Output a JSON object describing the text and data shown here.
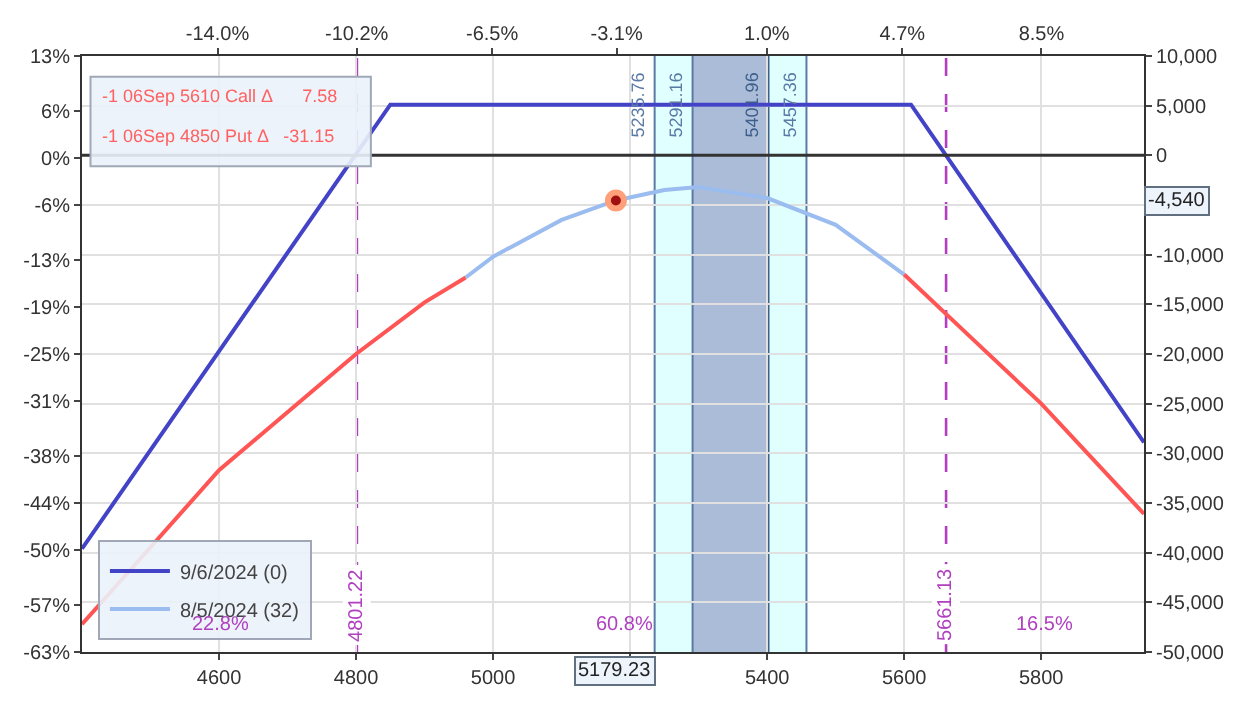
{
  "chart_data": {
    "type": "line",
    "xlim": [
      4400,
      5950
    ],
    "xticks": [
      4600,
      4800,
      5000,
      {
        "value": 5200,
        "label": null
      },
      5400,
      5600,
      5800
    ],
    "x2lim": [
      -17.7,
      11.3
    ],
    "x2ticks": [
      {
        "value": -14.0,
        "label": "-14.0%"
      },
      {
        "value": -10.2,
        "label": "-10.2%"
      },
      {
        "value": -6.5,
        "label": "-6.5%"
      },
      {
        "value": -3.1,
        "label": "-3.1%"
      },
      {
        "value": 1.0,
        "label": "1.0%"
      },
      {
        "value": 4.7,
        "label": "4.7%"
      },
      {
        "value": 8.5,
        "label": "8.5%"
      }
    ],
    "ylim": [
      -63,
      13
    ],
    "yticks": [
      {
        "value": 13,
        "label": "13%"
      },
      {
        "value": 6,
        "label": "6%"
      },
      {
        "value": 0,
        "label": "0%"
      },
      {
        "value": -6,
        "label": "-6%"
      },
      {
        "value": -13,
        "label": "-13%"
      },
      {
        "value": -19,
        "label": "-19%"
      },
      {
        "value": -25,
        "label": "-25%"
      },
      {
        "value": -31,
        "label": "-31%"
      },
      {
        "value": -38,
        "label": "-38%"
      },
      {
        "value": -44,
        "label": "-44%"
      },
      {
        "value": -50,
        "label": "-50%"
      },
      {
        "value": -57,
        "label": "-57%"
      },
      {
        "value": -63,
        "label": "-63%"
      }
    ],
    "y2lim": [
      -50000,
      10000
    ],
    "y2ticks": [
      {
        "value": 10000,
        "label": "10,000"
      },
      {
        "value": 5000,
        "label": "5,000"
      },
      0,
      {
        "value": -5000,
        "label": null
      },
      {
        "value": -10000,
        "label": "-10,000"
      },
      {
        "value": -15000,
        "label": "-15,000"
      },
      {
        "value": -20000,
        "label": "-20,000"
      },
      {
        "value": -25000,
        "label": "-25,000"
      },
      {
        "value": -30000,
        "label": "-30,000"
      },
      {
        "value": -35000,
        "label": "-35,000"
      },
      {
        "value": -40000,
        "label": "-40,000"
      },
      {
        "value": -45000,
        "label": "-45,000"
      },
      {
        "value": -50000,
        "label": "-50,000"
      }
    ],
    "grid": true,
    "legend": "bottom left",
    "marker": "none",
    "line_style": "solid",
    "series": [
      {
        "name": "9/6/2024 (0)",
        "color": "#4343c8",
        "axis": "y2",
        "x": [
          4400,
          4850,
          5610,
          5950
        ],
        "values": [
          -39600,
          5100,
          5100,
          -28900
        ]
      },
      {
        "color": "#ff5555",
        "axis": "y2",
        "x": [
          4400,
          4600,
          4800,
          4900,
          4960
        ],
        "values": [
          -47200,
          -31700,
          -20000,
          -14800,
          -12300
        ]
      },
      {
        "name": "8/5/2024 (32)",
        "color": "#9bbcef",
        "axis": "y2",
        "x": [
          4960,
          5000,
          5100,
          5179.23,
          5250,
          5300,
          5400,
          5500,
          5600
        ],
        "values": [
          -12300,
          -10200,
          -6500,
          -4540,
          -3500,
          -3200,
          -4300,
          -7000,
          -12000
        ]
      },
      {
        "color": "#ff5555",
        "axis": "y2",
        "x": [
          5600,
          5700,
          5800,
          5950
        ],
        "values": [
          -12000,
          -18500,
          -25000,
          -36100
        ]
      },
      {
        "type": "scatter",
        "marker": "circle",
        "color": "#a01010",
        "axis": "y2",
        "x": [
          5179.23
        ],
        "values": [
          -4540
        ]
      }
    ],
    "bands": [
      {
        "axis": "x",
        "from": 5235.76,
        "to": 5457.36,
        "color": "#e0ffff"
      },
      {
        "axis": "x",
        "from": 5291.16,
        "to": 5401.96,
        "color": "#aabcd8"
      }
    ],
    "ref_lines": [
      {
        "axis": "x",
        "value": 4801.22,
        "label": "4801.22",
        "color": "#b040c0",
        "line_style": "dashed"
      },
      {
        "axis": "x",
        "value": 5661.13,
        "label": "5661.13",
        "color": "#b040c0",
        "line_style": "dashed"
      },
      {
        "axis": "x",
        "value": 5235.76,
        "label": "5235.76",
        "color": "#5a7aa6",
        "line_style": "solid"
      },
      {
        "axis": "x",
        "value": 5291.16,
        "label": "5291.16",
        "color": "#5a7aa6",
        "line_style": "solid"
      },
      {
        "axis": "x",
        "value": 5401.96,
        "label": "5401.96",
        "color": "#3e5f8c",
        "line_style": "solid"
      },
      {
        "axis": "x",
        "value": 5457.36,
        "label": "5457.36",
        "color": "#5a7aa6",
        "line_style": "solid"
      },
      {
        "axis": "y2",
        "value": 0,
        "color": "#333333",
        "line_style": "solid"
      }
    ],
    "annotations": [
      "-1 06Sep 5610 Call Δ      7.58",
      "-1 06Sep 4850 Put Δ   -31.15",
      "22.8%",
      "60.8%",
      "16.5%",
      "5179.23",
      "-4,540"
    ]
  }
}
